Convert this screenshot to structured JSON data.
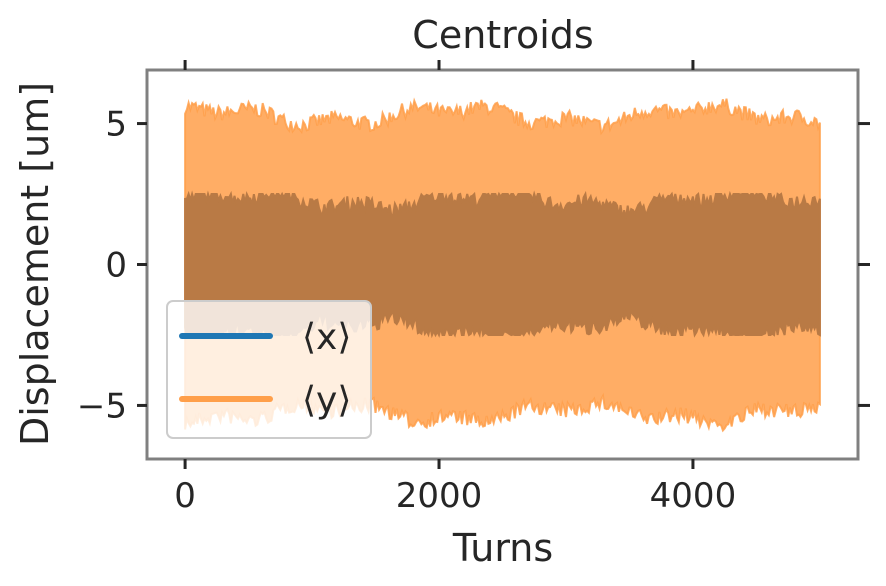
{
  "chart_data": {
    "type": "line",
    "title": "Centroids",
    "xlabel": "Turns",
    "ylabel": "Displacement [um]",
    "xlim": [
      -300,
      5300
    ],
    "ylim": [
      -6.9,
      6.9
    ],
    "xticks": [
      0,
      2000,
      4000
    ],
    "xtick_labels": [
      "0",
      "2000",
      "4000"
    ],
    "yticks": [
      5,
      0,
      -5
    ],
    "ytick_labels": [
      "5",
      "0",
      "−5"
    ],
    "grid": false,
    "legend_position": "lower-left",
    "series": [
      {
        "name": "⟨x⟩",
        "color": "#1f77b4",
        "x_range": [
          0,
          5000
        ],
        "envelope_min": -2.5,
        "envelope_max": 2.5,
        "typical_amplitude": 2.0
      },
      {
        "name": "⟨y⟩",
        "color": "#ff9f4a",
        "x_range": [
          0,
          5000
        ],
        "envelope_min": -6.3,
        "envelope_max": 6.3,
        "typical_amplitude": 5.0
      }
    ]
  }
}
